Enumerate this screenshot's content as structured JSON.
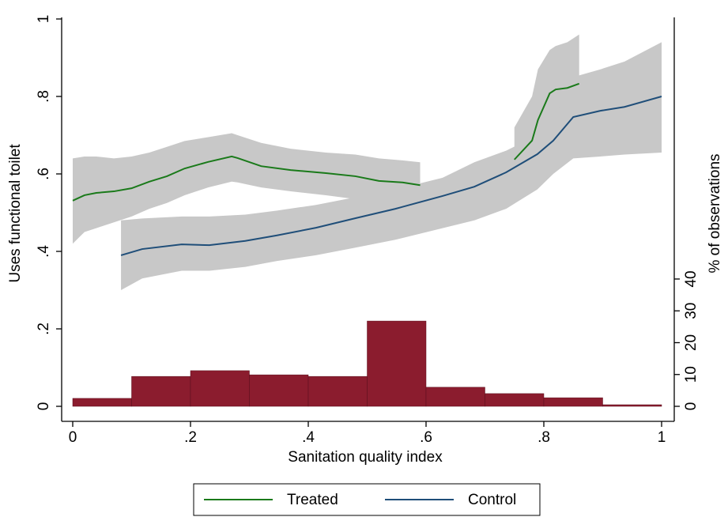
{
  "chart_data": {
    "type": "line",
    "xlabel": "Sanitation quality index",
    "ylabel": "Uses functional toilet",
    "y2label": "% of observations",
    "xlim": [
      0,
      1
    ],
    "xticks": [
      0,
      {
        "value": 0.2,
        "label": ".2"
      },
      {
        "value": 0.4,
        "label": ".4"
      },
      {
        "value": 0.6,
        "label": ".6"
      },
      {
        "value": 0.8,
        "label": ".8"
      },
      1
    ],
    "ylim": [
      0,
      1
    ],
    "yticks": [
      0,
      {
        "value": 0.2,
        "label": ".2"
      },
      {
        "value": 0.4,
        "label": ".4"
      },
      {
        "value": 0.6,
        "label": ".6"
      },
      {
        "value": 0.8,
        "label": ".8"
      },
      1
    ],
    "y2lim": [
      0,
      121.7
    ],
    "y2ticks": [
      0,
      10,
      20,
      30,
      40
    ],
    "band_color": "#c8c8c8",
    "legend": "bottom",
    "series": [
      {
        "name": "Treated",
        "color": "#1a7a1a",
        "x": [
          0,
          0.02,
          0.04,
          0.07,
          0.1,
          0.13,
          0.16,
          0.19,
          0.23,
          0.27,
          0.28,
          0.32,
          0.37,
          0.43,
          0.48,
          0.52,
          0.56,
          0.59,
          null,
          0.75,
          0.78,
          0.79,
          0.81,
          0.82,
          0.84,
          0.86
        ],
        "values": [
          0.531,
          0.545,
          0.551,
          0.555,
          0.563,
          0.58,
          0.594,
          0.614,
          0.631,
          0.645,
          0.641,
          0.62,
          0.61,
          0.602,
          0.594,
          0.582,
          0.578,
          0.571,
          null,
          0.637,
          0.686,
          0.739,
          0.808,
          0.818,
          0.822,
          0.833
        ],
        "upper": [
          0.64,
          0.645,
          0.645,
          0.64,
          0.645,
          0.655,
          0.67,
          0.685,
          0.695,
          0.705,
          0.7,
          0.68,
          0.665,
          0.655,
          0.65,
          0.64,
          0.635,
          0.63,
          null,
          0.72,
          0.8,
          0.87,
          0.92,
          0.93,
          0.94,
          0.96
        ],
        "lower": [
          0.42,
          0.45,
          0.46,
          0.475,
          0.49,
          0.51,
          0.525,
          0.545,
          0.565,
          0.58,
          0.578,
          0.565,
          0.555,
          0.545,
          0.535,
          0.525,
          0.52,
          0.512,
          null,
          0.58,
          0.62,
          0.66,
          0.7,
          0.7,
          0.71,
          0.72
        ]
      },
      {
        "name": "Control",
        "color": "#1f4e79",
        "x": [
          0.082,
          0.118,
          0.185,
          0.232,
          0.293,
          0.346,
          0.413,
          0.481,
          0.548,
          0.628,
          0.682,
          0.736,
          0.789,
          0.816,
          0.85,
          0.896,
          0.937,
          1.0
        ],
        "values": [
          0.39,
          0.406,
          0.418,
          0.416,
          0.427,
          0.441,
          0.461,
          0.486,
          0.51,
          0.543,
          0.567,
          0.604,
          0.651,
          0.686,
          0.747,
          0.763,
          0.773,
          0.8
        ],
        "upper": [
          0.48,
          0.485,
          0.49,
          0.49,
          0.495,
          0.505,
          0.52,
          0.54,
          0.56,
          0.59,
          0.63,
          0.66,
          0.7,
          0.74,
          0.85,
          0.87,
          0.89,
          0.94
        ],
        "lower": [
          0.3,
          0.33,
          0.35,
          0.35,
          0.36,
          0.375,
          0.39,
          0.41,
          0.43,
          0.46,
          0.48,
          0.51,
          0.56,
          0.6,
          0.64,
          0.645,
          0.65,
          0.655
        ]
      }
    ],
    "histogram": {
      "type": "histogram",
      "axis": "y2",
      "color": "#8b1c2e",
      "bins": [
        0,
        0.1,
        0.2,
        0.3,
        0.4,
        0.5,
        0.6,
        0.7,
        0.8,
        0.9,
        1.0
      ],
      "values": [
        2.5,
        9.4,
        11.2,
        9.9,
        9.4,
        26.8,
        6.0,
        4.0,
        2.7,
        0.5
      ]
    }
  }
}
